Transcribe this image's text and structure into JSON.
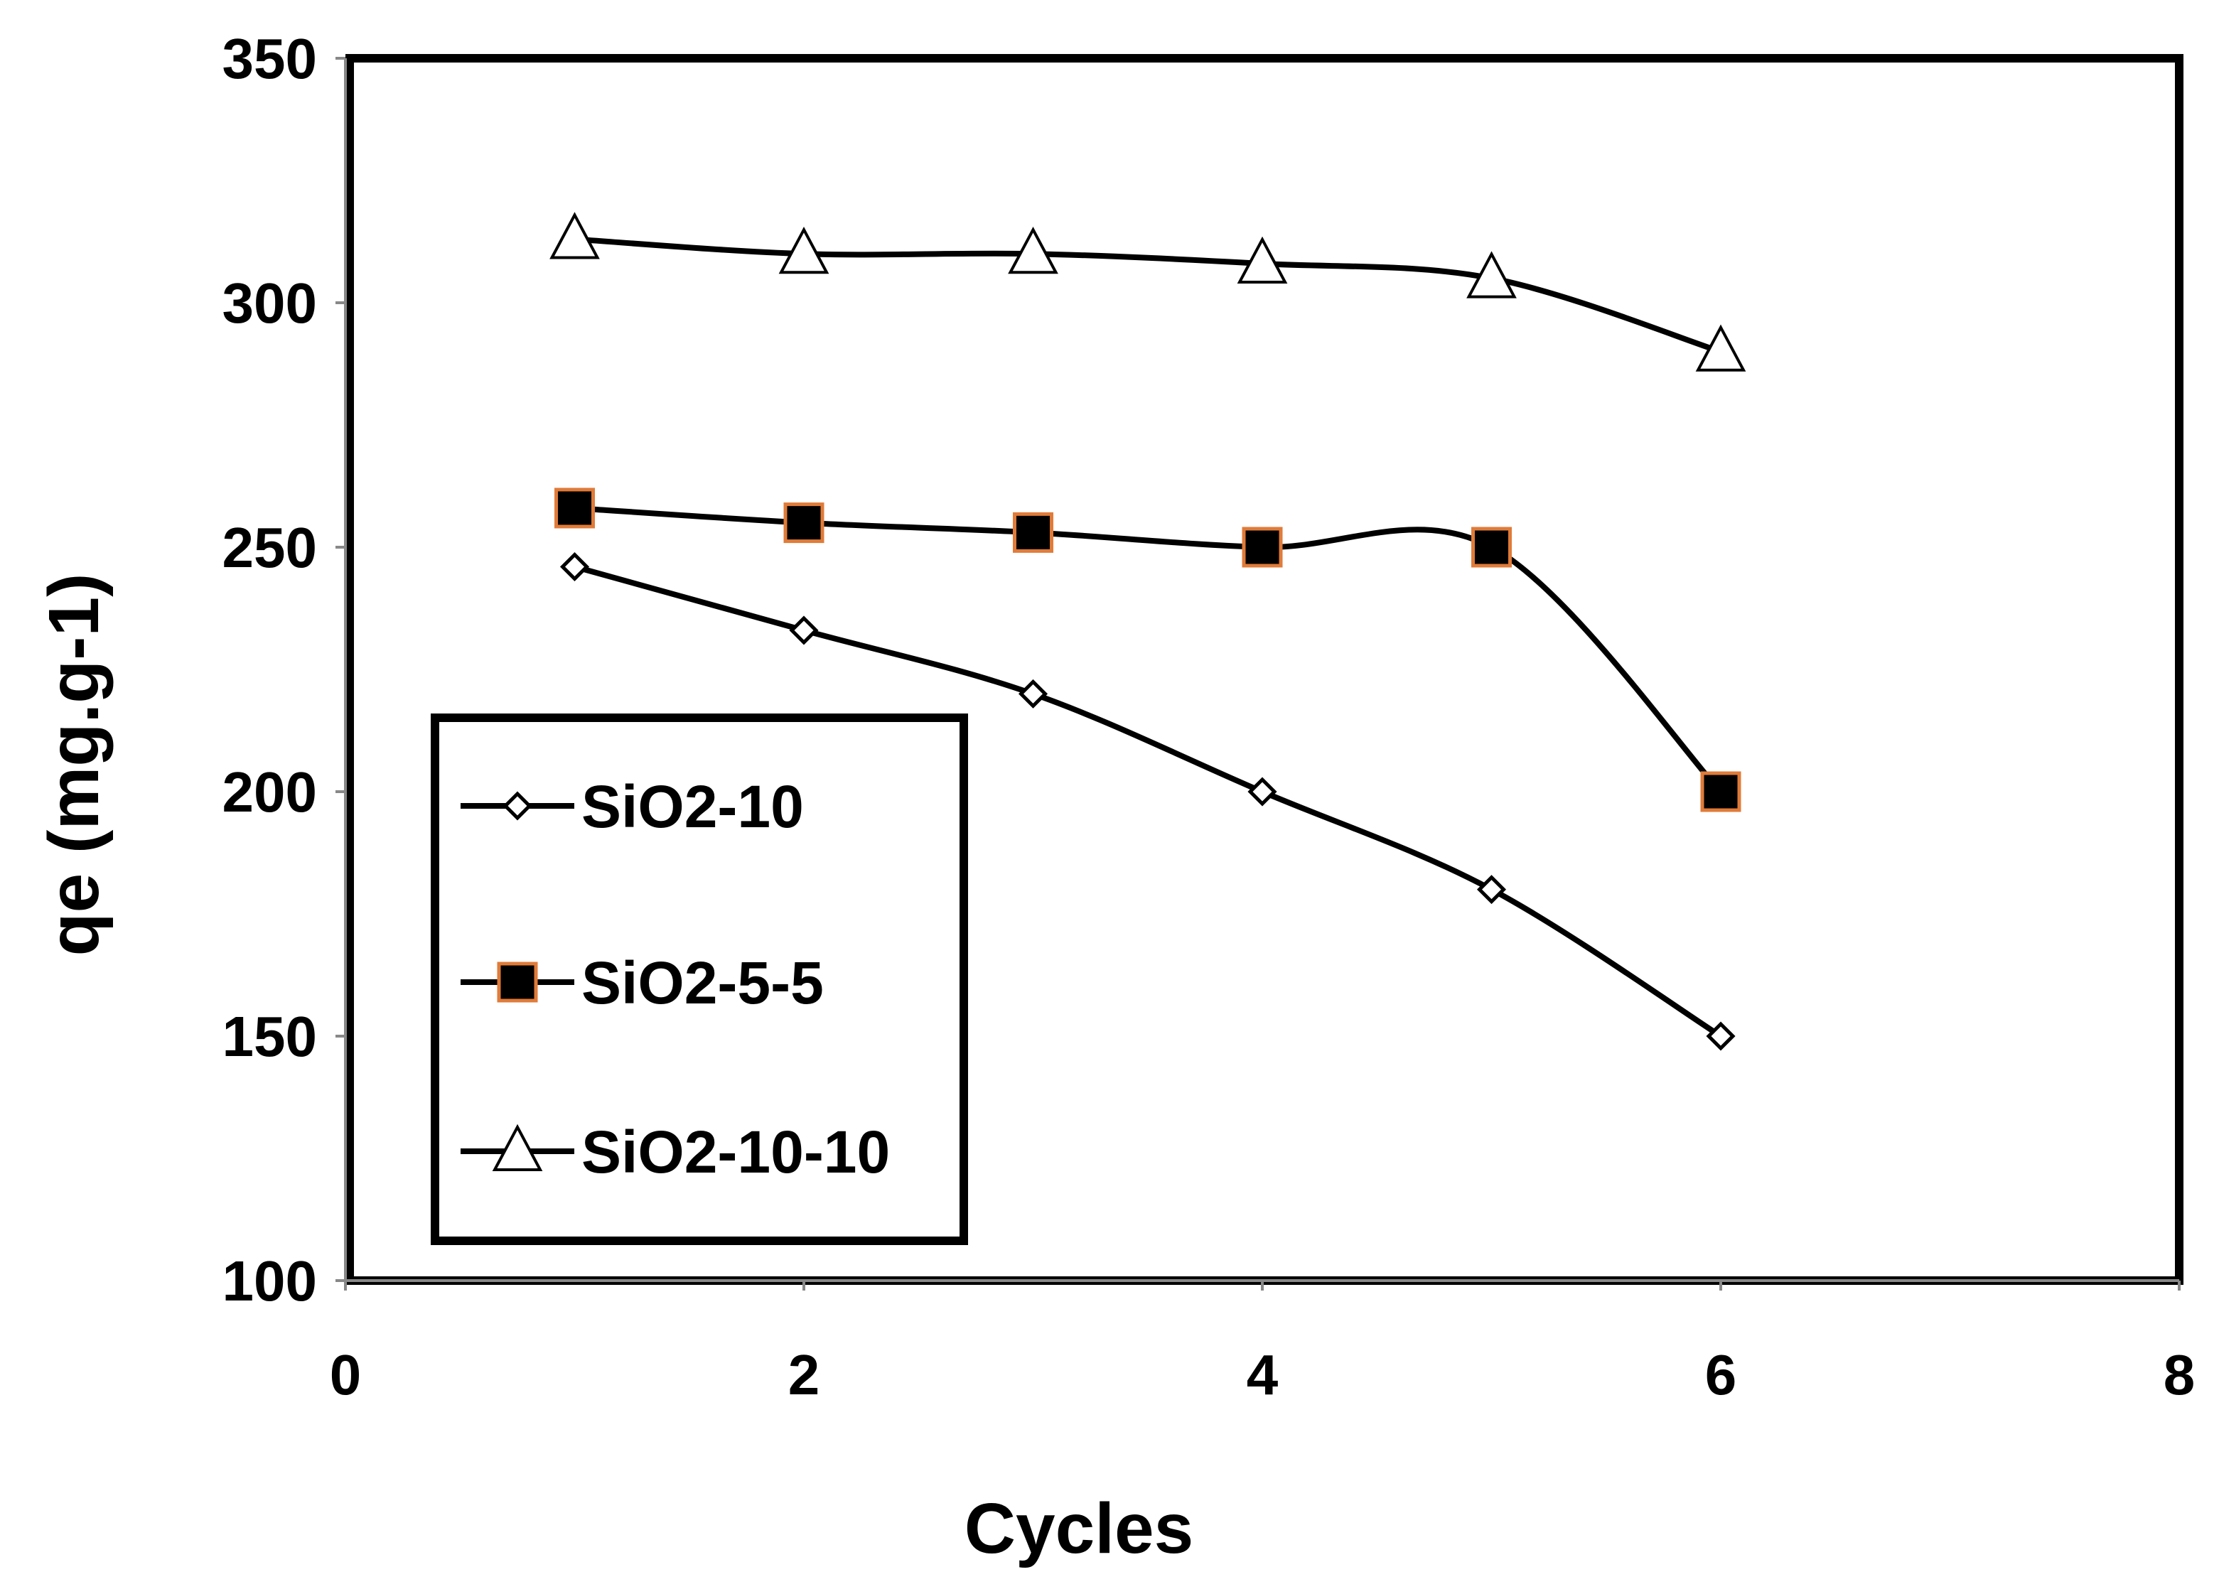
{
  "chart_data": {
    "type": "line",
    "xlabel": "Cycles",
    "ylabel": "qe (mg.g-1)",
    "xlim": [
      0,
      8
    ],
    "ylim": [
      100,
      350
    ],
    "xticks": [
      0,
      2,
      4,
      6,
      8
    ],
    "yticks": [
      100,
      150,
      200,
      250,
      300,
      350
    ],
    "grid": false,
    "legend_position": "bottom-left",
    "smooth": true,
    "x": [
      1,
      2,
      3,
      4,
      5,
      6
    ],
    "series": [
      {
        "name": "SiO2-10",
        "marker": "diamond",
        "marker_fill": "#ffffff",
        "marker_stroke": "#000000",
        "values": [
          246,
          233,
          220,
          200,
          180,
          150
        ]
      },
      {
        "name": "SiO2-5-5",
        "marker": "square",
        "marker_fill": "#000000",
        "marker_stroke": "#e07b39",
        "values": [
          258,
          255,
          253,
          250,
          250,
          200
        ]
      },
      {
        "name": "SiO2-10-10",
        "marker": "triangle",
        "marker_fill": "#ffffff",
        "marker_stroke": "#000000",
        "values": [
          313,
          310,
          310,
          308,
          305,
          290
        ]
      }
    ]
  }
}
